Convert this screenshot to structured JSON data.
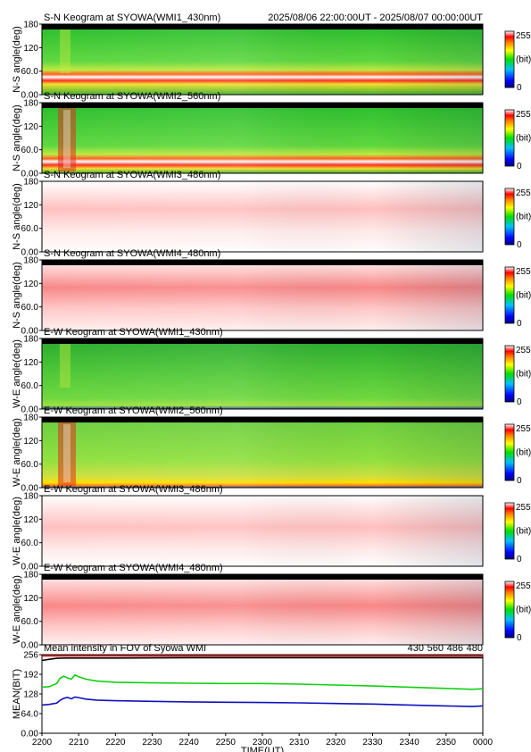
{
  "header": {
    "time_range": "2025/08/06 22:00:00UT - 2025/08/07 00:00:00UT"
  },
  "chart_data": [
    {
      "type": "heatmap",
      "title": "S-N Keogram at SYOWA(WMI1_430nm)",
      "ylabel": "N-S angle(deg)",
      "y_ticks": [
        "0.00",
        "60.0",
        "120",
        "180"
      ],
      "ylim": [
        0,
        180
      ],
      "colorbar": {
        "max": "255",
        "unit": "(bit)",
        "min": "0"
      },
      "style": "green",
      "band": {
        "center": 45,
        "strength": 1.0
      }
    },
    {
      "type": "heatmap",
      "title": "S-N Keogram at SYOWA(WMI2_560nm)",
      "ylabel": "N-S angle(deg)",
      "y_ticks": [
        "0.00",
        "60.0",
        "120",
        "180"
      ],
      "ylim": [
        0,
        180
      ],
      "colorbar": {
        "max": "255",
        "unit": "(bit)",
        "min": "0"
      },
      "style": "green",
      "band": {
        "center": 30,
        "strength": 1.4
      }
    },
    {
      "type": "heatmap",
      "title": "S-N Keogram at SYOWA(WMI3_486nm)",
      "ylabel": "N-S angle(deg)",
      "y_ticks": [
        "0.00",
        "60.0",
        "120",
        "180"
      ],
      "ylim": [
        0,
        180
      ],
      "colorbar": {
        "max": "255",
        "unit": "(bit)",
        "min": "0"
      },
      "style": "pale",
      "band": {
        "center": 110,
        "strength": 0.4
      }
    },
    {
      "type": "heatmap",
      "title": "S-N Keogram at SYOWA(WMI4_480nm)",
      "ylabel": "N-S angle(deg)",
      "y_ticks": [
        "0.00",
        "60.0",
        "120",
        "180"
      ],
      "ylim": [
        0,
        180
      ],
      "colorbar": {
        "max": "255",
        "unit": "(bit)",
        "min": "0"
      },
      "style": "pink",
      "band": {
        "center": 110,
        "strength": 0.8
      }
    },
    {
      "type": "heatmap",
      "title": "E-W Keogram at SYOWA(WMI1_430nm)",
      "ylabel": "W-E angle(deg)",
      "y_ticks": [
        "0.00",
        "60.0",
        "120",
        "180"
      ],
      "ylim": [
        0,
        180
      ],
      "colorbar": {
        "max": "255",
        "unit": "(bit)",
        "min": "0"
      },
      "style": "green",
      "band": {
        "center": 10,
        "strength": 0.3
      }
    },
    {
      "type": "heatmap",
      "title": "E-W Keogram at SYOWA(WMI2_560nm)",
      "ylabel": "W-E angle(deg)",
      "y_ticks": [
        "0.00",
        "60.0",
        "120",
        "180"
      ],
      "ylim": [
        0,
        180
      ],
      "colorbar": {
        "max": "255",
        "unit": "(bit)",
        "min": "0"
      },
      "style": "green",
      "band": {
        "center": 5,
        "strength": 0.9
      }
    },
    {
      "type": "heatmap",
      "title": "E-W Keogram at SYOWA(WMI3_486nm)",
      "ylabel": "W-E angle(deg)",
      "y_ticks": [
        "0.00",
        "60.0",
        "120",
        "180"
      ],
      "ylim": [
        0,
        180
      ],
      "colorbar": {
        "max": "255",
        "unit": "(bit)",
        "min": "0"
      },
      "style": "pale",
      "band": {
        "center": 100,
        "strength": 0.4
      }
    },
    {
      "type": "heatmap",
      "title": "E-W Keogram at SYOWA(WMI4_480nm)",
      "ylabel": "W-E angle(deg)",
      "y_ticks": [
        "0.00",
        "60.0",
        "120",
        "180"
      ],
      "ylim": [
        0,
        180
      ],
      "colorbar": {
        "max": "255",
        "unit": "(bit)",
        "min": "0"
      },
      "style": "pink",
      "band": {
        "center": 100,
        "strength": 0.7
      }
    },
    {
      "type": "line",
      "title": "Mean intensity in FOV of Syowa WMI",
      "ylabel": "MEAN(BIT)",
      "ylim": [
        0,
        256
      ],
      "y_ticks": [
        "0.00",
        "64.0",
        "128",
        "192",
        "256"
      ],
      "xlabel": "TIME(UT)",
      "x_ticks": [
        "2200",
        "2210",
        "2220",
        "2230",
        "2240",
        "2250",
        "2300",
        "2310",
        "2320",
        "2330",
        "2340",
        "2350",
        "0000"
      ],
      "legend_placement": "top-right",
      "series": [
        {
          "name": "430",
          "color": "#1010c0",
          "x": [
            0,
            2,
            4,
            5,
            6,
            7,
            8,
            9,
            10,
            12,
            15,
            20,
            30,
            40,
            50,
            60,
            70,
            80,
            90,
            100,
            110,
            117,
            120
          ],
          "values": [
            92,
            94,
            98,
            108,
            114,
            117,
            112,
            118,
            116,
            111,
            108,
            106,
            104,
            102,
            101,
            100,
            99,
            97,
            95,
            92,
            89,
            87,
            89
          ]
        },
        {
          "name": "560",
          "color": "#10d010",
          "x": [
            0,
            2,
            4,
            5,
            6,
            7,
            8,
            9,
            10,
            12,
            15,
            20,
            30,
            40,
            50,
            60,
            70,
            80,
            90,
            100,
            110,
            117,
            120
          ],
          "values": [
            150,
            152,
            162,
            180,
            186,
            180,
            176,
            190,
            184,
            176,
            170,
            166,
            164,
            163,
            162,
            162,
            160,
            157,
            154,
            150,
            146,
            143,
            145
          ]
        },
        {
          "name": "486",
          "color": "#e01010",
          "x": [
            0,
            10,
            20,
            30,
            40,
            50,
            60,
            70,
            80,
            90,
            100,
            110,
            120
          ],
          "values": [
            252,
            252,
            252,
            252,
            252,
            252,
            252,
            252,
            252,
            252,
            252,
            252,
            252
          ]
        },
        {
          "name": "480",
          "color": "#000000",
          "x": [
            0,
            2,
            4,
            6,
            8,
            10,
            20,
            40,
            60,
            80,
            100,
            120
          ],
          "values": [
            237,
            241,
            244,
            245,
            245,
            245,
            245,
            246,
            246,
            246,
            246,
            246
          ]
        }
      ]
    }
  ]
}
